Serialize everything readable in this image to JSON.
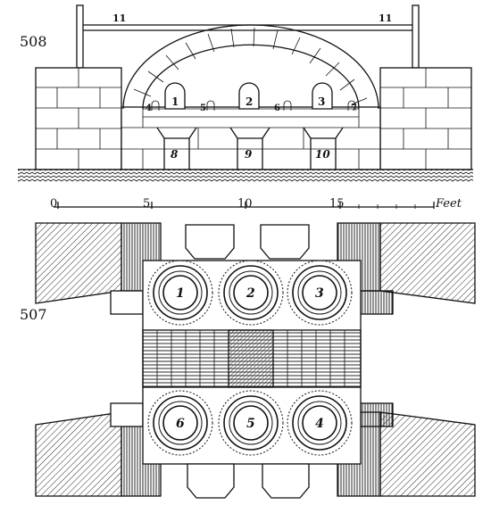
{
  "figures": {
    "elevation_number": "508",
    "plan_number": "507"
  },
  "elevation_labels": {
    "rod_left": "11",
    "rod_right": "11",
    "pot1": "1",
    "pot2": "2",
    "pot3": "3",
    "small4": "4",
    "small5": "5",
    "small6": "6",
    "small7": "7",
    "arch8": "8",
    "arch9": "9",
    "arch10": "10"
  },
  "scale_bar": {
    "tick0": "0",
    "tick5": "5",
    "tick10": "10",
    "tick15": "15",
    "unit": "Feet"
  },
  "plan_labels": {
    "pot1": "1",
    "pot2": "2",
    "pot3": "3",
    "pot4": "4",
    "pot5": "5",
    "pot6": "6"
  }
}
